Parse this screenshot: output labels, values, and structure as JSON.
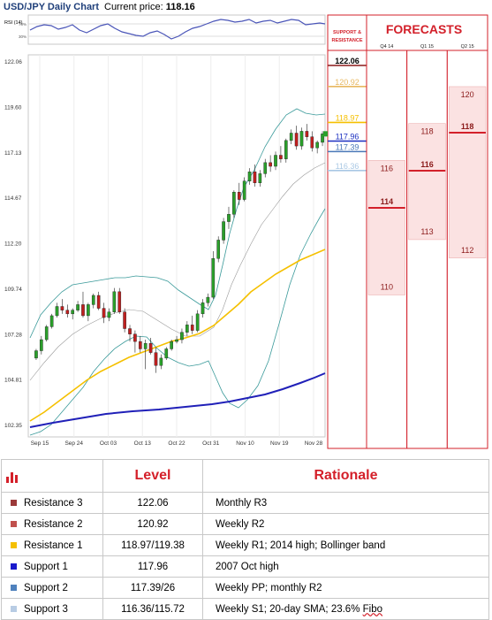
{
  "header": {
    "title": "USD/JPY Daily Chart",
    "price_label": "Current price:",
    "price_value": "118.16"
  },
  "chart_data": {
    "type": "candlestick",
    "x_tick_labels": [
      "Sep 15",
      "Sep 24",
      "Oct 03",
      "Oct 13",
      "Oct 22",
      "Oct 31",
      "Nov 10",
      "Nov 19",
      "Nov 28"
    ],
    "y_tick_labels": [
      "122.06",
      "119.60",
      "117.13",
      "114.67",
      "112.20",
      "109.74",
      "107.28",
      "104.81",
      "102.35"
    ],
    "ylim": [
      102.35,
      122.06
    ],
    "candles": [
      [
        106.0,
        106.5,
        105.9,
        106.4
      ],
      [
        106.4,
        107.2,
        106.2,
        107.0
      ],
      [
        107.0,
        107.8,
        106.9,
        107.7
      ],
      [
        107.7,
        108.4,
        107.6,
        108.3
      ],
      [
        108.3,
        109.0,
        108.2,
        108.8
      ],
      [
        108.8,
        109.2,
        108.4,
        108.6
      ],
      [
        108.6,
        108.9,
        108.2,
        108.4
      ],
      [
        108.4,
        108.7,
        108.1,
        108.6
      ],
      [
        108.6,
        109.1,
        108.5,
        108.9
      ],
      [
        108.9,
        109.6,
        108.2,
        108.3
      ],
      [
        108.3,
        109.0,
        108.0,
        108.9
      ],
      [
        108.9,
        109.5,
        108.7,
        109.4
      ],
      [
        109.4,
        109.6,
        108.6,
        108.7
      ],
      [
        108.7,
        109.0,
        107.9,
        108.2
      ],
      [
        108.2,
        108.7,
        108.0,
        108.5
      ],
      [
        108.5,
        109.8,
        108.4,
        109.6
      ],
      [
        109.6,
        109.8,
        108.4,
        108.5
      ],
      [
        108.5,
        108.7,
        107.4,
        107.6
      ],
      [
        107.6,
        107.8,
        106.9,
        107.3
      ],
      [
        107.3,
        107.5,
        106.3,
        106.9
      ],
      [
        106.9,
        107.2,
        106.3,
        106.5
      ],
      [
        106.5,
        107.0,
        105.4,
        106.8
      ],
      [
        106.8,
        107.1,
        106.2,
        106.3
      ],
      [
        106.3,
        106.6,
        105.2,
        105.6
      ],
      [
        105.6,
        106.2,
        105.4,
        106.0
      ],
      [
        106.0,
        106.6,
        105.9,
        106.5
      ],
      [
        106.5,
        107.0,
        106.4,
        106.9
      ],
      [
        106.9,
        107.2,
        106.8,
        107.0
      ],
      [
        107.0,
        107.6,
        106.8,
        107.4
      ],
      [
        107.4,
        108.0,
        107.2,
        107.8
      ],
      [
        107.8,
        108.3,
        107.3,
        107.5
      ],
      [
        107.5,
        108.6,
        107.4,
        108.4
      ],
      [
        108.4,
        109.2,
        108.2,
        109.0
      ],
      [
        109.0,
        109.5,
        108.8,
        109.3
      ],
      [
        109.3,
        111.8,
        109.2,
        111.4
      ],
      [
        111.4,
        112.6,
        111.2,
        112.4
      ],
      [
        112.4,
        113.6,
        112.2,
        113.4
      ],
      [
        113.4,
        114.2,
        113.0,
        113.8
      ],
      [
        113.8,
        115.1,
        113.6,
        115.0
      ],
      [
        115.0,
        115.5,
        114.3,
        114.6
      ],
      [
        114.6,
        115.8,
        114.5,
        115.6
      ],
      [
        115.6,
        116.3,
        115.4,
        116.1
      ],
      [
        116.1,
        116.5,
        115.3,
        115.5
      ],
      [
        115.5,
        116.2,
        115.3,
        116.0
      ],
      [
        116.0,
        116.8,
        115.8,
        116.6
      ],
      [
        116.6,
        117.0,
        116.1,
        116.4
      ],
      [
        116.4,
        117.2,
        116.2,
        117.0
      ],
      [
        117.0,
        117.5,
        116.6,
        116.8
      ],
      [
        116.8,
        117.9,
        116.6,
        117.8
      ],
      [
        117.8,
        118.4,
        117.6,
        118.2
      ],
      [
        118.2,
        118.6,
        117.3,
        117.5
      ],
      [
        117.5,
        118.5,
        117.3,
        118.3
      ],
      [
        118.3,
        118.7,
        117.8,
        118.0
      ],
      [
        118.0,
        118.3,
        117.2,
        117.4
      ],
      [
        117.4,
        117.8,
        117.1,
        117.7
      ],
      [
        117.7,
        118.3,
        117.5,
        118.16
      ]
    ],
    "levels": [
      {
        "value": "122.06",
        "color": "#8b1a1a"
      },
      {
        "value": "120.92",
        "color": "#e8b860"
      },
      {
        "value": "118.97",
        "color": "#f5c000"
      },
      {
        "value": "117.96",
        "color": "#1b2fc0"
      },
      {
        "value": "117.39",
        "color": "#4a78b8"
      },
      {
        "value": "116.36",
        "color": "#a9c8e4"
      }
    ],
    "support_resistance_header": "SUPPORT & RESISTANCE",
    "forecasts": {
      "title": "FORECASTS",
      "columns": [
        {
          "label": "Q4 14",
          "high": "116",
          "mid": "114",
          "low": "110"
        },
        {
          "label": "Q1 15",
          "high": "118",
          "mid": "116",
          "low": "113"
        },
        {
          "label": "Q2 15",
          "high": "120",
          "mid": "118",
          "low": "112"
        }
      ]
    },
    "rsi": {
      "label": "RSI (14)",
      "ticks": [
        "70%",
        "30%"
      ]
    }
  },
  "table": {
    "col_level": "Level",
    "col_rationale": "Rationale",
    "rows": [
      {
        "name": "Resistance 3",
        "color": "#9b3a3a",
        "level": "122.06",
        "rationale": "Monthly R3"
      },
      {
        "name": "Resistance 2",
        "color": "#c0504d",
        "level": "120.92",
        "rationale": "Weekly R2"
      },
      {
        "name": "Resistance 1",
        "color": "#f5c000",
        "level": "118.97/119.38",
        "rationale": "Weekly R1; 2014 high; Bollinger band"
      },
      {
        "name": "Support 1",
        "color": "#1a1acc",
        "level": "117.96",
        "rationale": "2007 Oct high"
      },
      {
        "name": "Support 2",
        "color": "#4f81bd",
        "level": "117.39/26",
        "rationale": "Weekly PP; monthly R2"
      },
      {
        "name": "Support 3",
        "color": "#b8cce4",
        "level": "116.36/115.72",
        "rationale_main": "Weekly S1; 20-day SMA; 23.6% ",
        "rationale_wavy": "Fibo"
      }
    ]
  }
}
